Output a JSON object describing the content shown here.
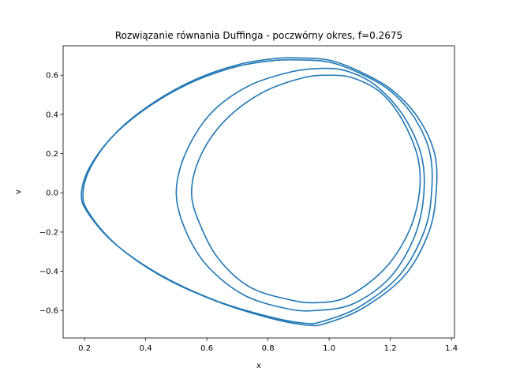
{
  "chart_data": {
    "type": "line",
    "title": "Rozwiązanie równania Duffinga - poczwórny okres, f=0.2675",
    "xlabel": "x",
    "ylabel": "v",
    "xlim": [
      0.13,
      1.41
    ],
    "ylim": [
      -0.74,
      0.75
    ],
    "xticks": [
      0.2,
      0.4,
      0.6,
      0.8,
      1.0,
      1.2,
      1.4
    ],
    "xtick_labels": [
      "0.2",
      "0.4",
      "0.6",
      "0.8",
      "1.0",
      "1.2",
      "1.4"
    ],
    "yticks": [
      -0.6,
      -0.4,
      -0.2,
      0.0,
      0.2,
      0.4,
      0.6
    ],
    "ytick_labels": [
      "−0.6",
      "−0.4",
      "−0.2",
      "0.0",
      "0.2",
      "0.4",
      "0.6"
    ],
    "grid": false,
    "line_color": "#1f77b4",
    "series": [
      {
        "x": [
          0.19,
          0.22,
          0.3,
          0.42,
          0.56,
          0.7,
          0.82,
          0.9,
          1.0,
          1.1,
          1.2,
          1.28,
          1.33,
          1.335,
          1.31,
          1.23,
          1.1,
          0.98,
          0.92,
          0.8,
          0.63,
          0.45,
          0.3,
          0.21,
          0.19
        ],
        "y": [
          0.0,
          0.14,
          0.3,
          0.45,
          0.57,
          0.645,
          0.675,
          0.678,
          0.667,
          0.61,
          0.52,
          0.38,
          0.2,
          0.0,
          -0.2,
          -0.42,
          -0.58,
          -0.655,
          -0.665,
          -0.63,
          -0.55,
          -0.42,
          -0.26,
          -0.1,
          0.0
        ]
      },
      {
        "x": [
          0.195,
          0.225,
          0.305,
          0.425,
          0.565,
          0.705,
          0.825,
          0.905,
          1.005,
          1.105,
          1.205,
          1.29,
          1.345,
          1.35,
          1.325,
          1.245,
          1.11,
          0.99,
          0.93,
          0.81,
          0.64,
          0.455,
          0.305,
          0.215,
          0.195
        ],
        "y": [
          0.0,
          0.145,
          0.31,
          0.46,
          0.58,
          0.655,
          0.685,
          0.688,
          0.675,
          0.615,
          0.525,
          0.385,
          0.2,
          0.0,
          -0.205,
          -0.425,
          -0.588,
          -0.665,
          -0.675,
          -0.64,
          -0.558,
          -0.428,
          -0.266,
          -0.104,
          0.0
        ]
      },
      {
        "x": [
          0.5,
          0.53,
          0.61,
          0.73,
          0.87,
          0.98,
          1.06,
          1.15,
          1.24,
          1.3,
          1.31,
          1.28,
          1.2,
          1.08,
          0.96,
          0.86,
          0.72,
          0.6,
          0.53,
          0.5
        ],
        "y": [
          0.0,
          0.2,
          0.4,
          0.54,
          0.615,
          0.635,
          0.62,
          0.55,
          0.4,
          0.2,
          0.0,
          -0.22,
          -0.43,
          -0.565,
          -0.6,
          -0.59,
          -0.52,
          -0.37,
          -0.19,
          0.0
        ]
      },
      {
        "x": [
          0.55,
          0.58,
          0.66,
          0.78,
          0.91,
          1.0,
          1.08,
          1.17,
          1.24,
          1.29,
          1.295,
          1.26,
          1.18,
          1.06,
          0.96,
          0.87,
          0.74,
          0.64,
          0.58,
          0.55
        ],
        "y": [
          0.0,
          0.19,
          0.37,
          0.51,
          0.585,
          0.6,
          0.585,
          0.51,
          0.37,
          0.18,
          0.0,
          -0.2,
          -0.39,
          -0.53,
          -0.56,
          -0.545,
          -0.48,
          -0.34,
          -0.17,
          0.0
        ]
      }
    ]
  }
}
